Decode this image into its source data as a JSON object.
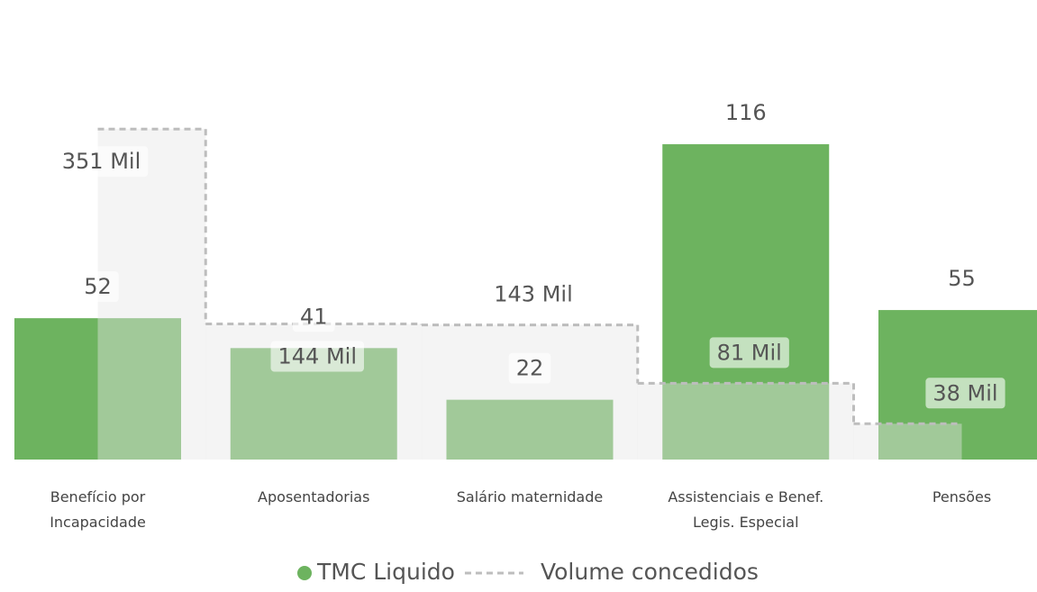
{
  "chart_data": {
    "type": "combo",
    "categories": [
      "Benefício por\nIncapacidade",
      "Aposentadorias",
      "Salário maternidade",
      "Assistenciais e Benef.\nLegis. Especial",
      "Pensões"
    ],
    "series": [
      {
        "name": "TMC Liquido",
        "type": "bar",
        "color": "#6db35f",
        "values": [
          52,
          41,
          22,
          116,
          55
        ]
      },
      {
        "name": "Volume concedidos",
        "type": "step",
        "axis": "y2",
        "color": "#bdbdbd",
        "values": [
          351000,
          144000,
          143000,
          81000,
          38000
        ],
        "value_labels": [
          "351 Mil",
          "144 Mil",
          "143 Mil",
          "81 Mil",
          "38 Mil"
        ]
      }
    ],
    "ylim": [
      0,
      120
    ],
    "y2lim": [
      0,
      400000
    ],
    "legend": "bottom"
  }
}
